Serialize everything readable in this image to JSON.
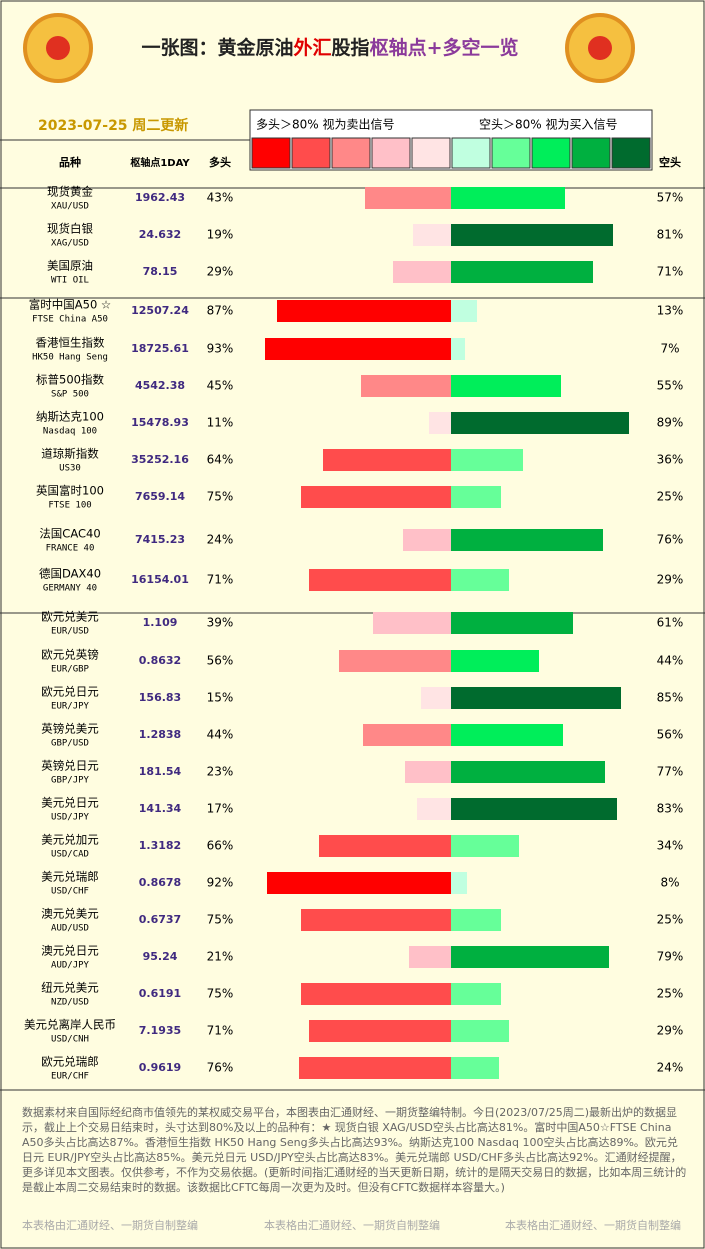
{
  "header": {
    "title_parts": [
      "一张图：黄金原油",
      "外汇",
      "股指",
      "枢轴点+多空一览"
    ],
    "date": "2023-07-25 周二更新"
  },
  "legend": {
    "left": "多头＞80% 视为卖出信号",
    "right": "空头＞80% 视为买入信号"
  },
  "columns": {
    "name": "品种",
    "pivot": "枢轴点1DAY"
  },
  "chart_data": {
    "type": "diverging-bar",
    "xlim": [
      0,
      100
    ],
    "categories": [
      "现货黄金",
      "现货白银",
      "美国原油",
      "富时中国A50 ☆",
      "香港恒生指数",
      "标普500指数",
      "纳斯达克100",
      "道琼斯指数",
      "英国富时100",
      "法国CAC40",
      "德国DAX40",
      "欧元兑美元",
      "欧元兑英镑",
      "欧元兑日元",
      "英镑兑美元",
      "英镑兑日元",
      "美元兑日元",
      "美元兑加元",
      "美元兑瑞郎",
      "澳元兑美元",
      "澳元兑日元",
      "纽元兑美元",
      "美元兑离岸人民币",
      "欧元兑瑞郎"
    ],
    "codes": [
      "XAU/USD",
      "XAG/USD",
      "WTI OIL",
      "FTSE China A50",
      "HK50 Hang Seng",
      "S&P 500",
      "Nasdaq 100",
      "US30",
      "FTSE 100",
      "FRANCE 40",
      "GERMANY 40",
      "EUR/USD",
      "EUR/GBP",
      "EUR/JPY",
      "GBP/USD",
      "GBP/JPY",
      "USD/JPY",
      "USD/CAD",
      "USD/CHF",
      "AUD/USD",
      "AUD/JPY",
      "NZD/USD",
      "USD/CNH",
      "EUR/CHF"
    ],
    "pivots": [
      "1962.43",
      "24.632",
      "78.15",
      "12507.24",
      "18725.61",
      "4542.38",
      "15478.93",
      "35252.16",
      "7659.14",
      "7415.23",
      "16154.01",
      "1.109",
      "0.8632",
      "156.83",
      "1.2838",
      "181.54",
      "141.34",
      "1.3182",
      "0.8678",
      "0.6737",
      "95.24",
      "0.6191",
      "7.1935",
      "0.9619"
    ],
    "series": [
      {
        "name": "多头",
        "colors": [
          "#ffe4e4",
          "#ffc0c8",
          "#ff8888",
          "#ff4c4c",
          "#ff0000"
        ],
        "values": [
          43,
          19,
          29,
          87,
          93,
          45,
          11,
          64,
          75,
          24,
          71,
          39,
          56,
          15,
          44,
          23,
          17,
          66,
          92,
          75,
          21,
          75,
          71,
          76
        ],
        "value_labels": [
          "43%",
          "19%",
          "29%",
          "87%",
          "93%",
          "45%",
          "11%",
          "64%",
          "75%",
          "24%",
          "71%",
          "39%",
          "56%",
          "15%",
          "44%",
          "23%",
          "17%",
          "66%",
          "92%",
          "75%",
          "21%",
          "75%",
          "71%",
          "76%"
        ]
      },
      {
        "name": "空头",
        "colors": [
          "#c0ffe0",
          "#66ff99",
          "#00ee5a",
          "#00b040",
          "#006b2e"
        ],
        "values": [
          57,
          81,
          71,
          13,
          7,
          55,
          89,
          36,
          25,
          76,
          29,
          61,
          44,
          85,
          56,
          77,
          83,
          34,
          8,
          25,
          79,
          25,
          29,
          24
        ],
        "value_labels": [
          "57%",
          "81%",
          "71%",
          "13%",
          "7%",
          "55%",
          "89%",
          "36%",
          "25%",
          "76%",
          "29%",
          "61%",
          "44%",
          "85%",
          "56%",
          "77%",
          "83%",
          "34%",
          "8%",
          "25%",
          "79%",
          "25%",
          "29%",
          "24%"
        ]
      }
    ]
  },
  "footer": {
    "note": "数据素材来自国际经纪商市值领先的某权威交易平台，本图表由汇通财经、一期货整编特制。今日(2023/07/25周二)最新出炉的数据显示，截止上个交易日结束时，头寸达到80%及以上的品种有：★ 现货白银 XAG/USD空头占比高达81%。富时中国A50☆FTSE China A50多头占比高达87%。香港恒生指数 HK50 Hang Seng多头占比高达93%。纳斯达克100 Nasdaq 100空头占比高达89%。欧元兑日元 EUR/JPY空头占比高达85%。美元兑日元 USD/JPY空头占比高达83%。美元兑瑞郎 USD/CHF多头占比高达92%。汇通财经提醒，更多详见本文图表。仅供参考，不作为交易依据。(更新时间指汇通财经的当天更新日期，统计的是隔天交易日的数据，比如本周三统计的是截止本周二交易结束时的数据。该数据比CFTC每周一次更为及时。但没有CFTC数据样本容量大。)",
    "credits": [
      "本表格由汇通财经、一期货自制整编",
      "本表格由汇通财经、一期货自制整编",
      "本表格由汇通财经、一期货自制整编"
    ]
  }
}
